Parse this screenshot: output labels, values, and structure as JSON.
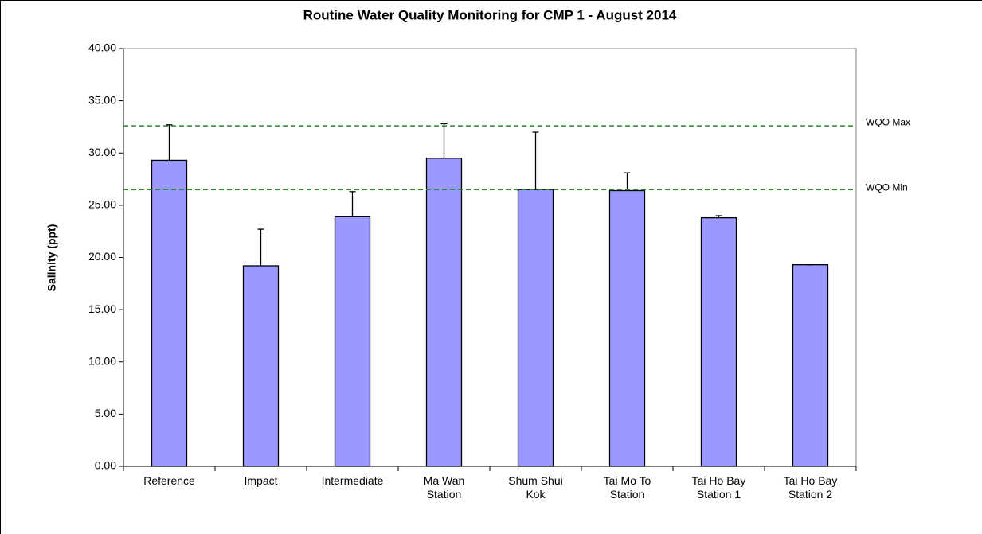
{
  "chart_data": {
    "type": "bar",
    "title": "Routine Water Quality Monitoring for CMP 1 - August 2014",
    "y_label": "Salinity (ppt)",
    "categories": [
      "Reference",
      "Impact",
      "Intermediate",
      "Ma Wan\nStation",
      "Shum Shui\nKok",
      "Tai Mo To\nStation",
      "Tai Ho Bay\nStation 1",
      "Tai Ho Bay\nStation 2"
    ],
    "series": [
      {
        "name": "Salinity",
        "color": "#9999ff",
        "values": [
          29.3,
          19.2,
          23.9,
          29.5,
          26.5,
          26.4,
          23.8,
          19.3
        ],
        "errors": [
          3.4,
          3.5,
          2.4,
          3.3,
          5.5,
          1.7,
          0.2,
          0
        ]
      }
    ],
    "reference_lines": [
      {
        "label": "WQO Max",
        "value": 32.6,
        "color": "#228b22"
      },
      {
        "label": "WQO Min",
        "value": 26.5,
        "color": "#228b22"
      }
    ],
    "ylim": [
      0,
      40
    ],
    "yticks": [
      {
        "value": 0,
        "label": "0.00"
      },
      {
        "value": 5,
        "label": "5.00"
      },
      {
        "value": 10,
        "label": "10.00"
      },
      {
        "value": 15,
        "label": "15.00"
      },
      {
        "value": 20,
        "label": "20.00"
      },
      {
        "value": 25,
        "label": "25.00"
      },
      {
        "value": 30,
        "label": "30.00"
      },
      {
        "value": 35,
        "label": "35.00"
      },
      {
        "value": 40,
        "label": "40.00"
      }
    ],
    "grid": false
  }
}
